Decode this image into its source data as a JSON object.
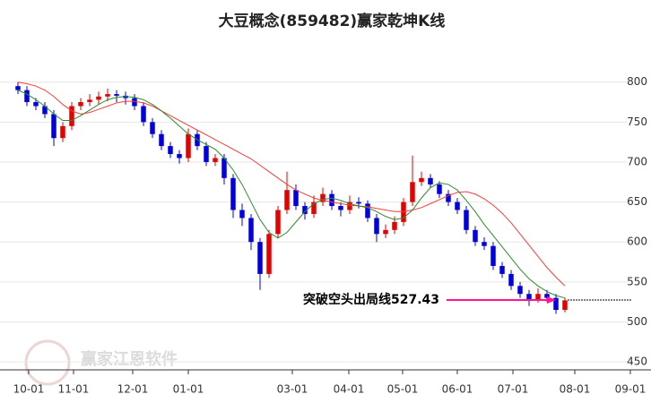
{
  "chart_data": {
    "type": "candlestick",
    "title": "大豆概念(859482)赢家乾坤K线",
    "x": [
      0,
      1,
      2,
      3,
      4,
      5,
      6,
      7,
      8,
      9,
      10,
      11,
      12,
      13,
      14,
      15,
      16,
      17,
      18,
      19,
      20,
      21,
      22,
      23,
      24,
      25,
      26,
      27,
      28,
      29,
      30,
      31,
      32,
      33,
      34,
      35,
      36,
      37,
      38,
      39,
      40,
      41,
      42,
      43,
      44,
      45,
      46,
      47,
      48,
      49,
      50,
      51,
      52,
      53,
      54,
      55,
      56,
      57,
      58,
      59,
      60,
      61
    ],
    "open": [
      795,
      790,
      775,
      770,
      760,
      730,
      745,
      770,
      775,
      778,
      782,
      785,
      783,
      780,
      770,
      750,
      735,
      720,
      710,
      705,
      735,
      720,
      700,
      705,
      680,
      640,
      630,
      600,
      560,
      610,
      640,
      665,
      645,
      635,
      650,
      660,
      645,
      640,
      650,
      648,
      630,
      610,
      615,
      625,
      650,
      675,
      680,
      672,
      660,
      650,
      640,
      615,
      600,
      595,
      570,
      560,
      545,
      535,
      528,
      535,
      530,
      515
    ],
    "high": [
      800,
      795,
      780,
      775,
      765,
      750,
      775,
      780,
      785,
      788,
      792,
      790,
      788,
      785,
      775,
      755,
      740,
      725,
      715,
      742,
      740,
      725,
      710,
      710,
      685,
      648,
      635,
      605,
      615,
      645,
      688,
      672,
      650,
      658,
      668,
      665,
      650,
      658,
      656,
      652,
      635,
      622,
      632,
      655,
      708,
      688,
      685,
      676,
      665,
      655,
      645,
      620,
      606,
      600,
      575,
      565,
      550,
      540,
      542,
      540,
      535,
      530
    ],
    "low": [
      785,
      770,
      765,
      755,
      720,
      725,
      740,
      765,
      770,
      772,
      776,
      775,
      772,
      765,
      745,
      730,
      715,
      705,
      698,
      700,
      715,
      695,
      695,
      672,
      630,
      620,
      590,
      540,
      555,
      605,
      635,
      640,
      628,
      630,
      645,
      640,
      632,
      635,
      642,
      625,
      600,
      605,
      610,
      620,
      645,
      670,
      668,
      655,
      645,
      635,
      610,
      595,
      590,
      565,
      555,
      540,
      530,
      520,
      524,
      525,
      510,
      512
    ],
    "close": [
      790,
      775,
      770,
      760,
      730,
      745,
      770,
      775,
      778,
      782,
      785,
      783,
      780,
      770,
      750,
      735,
      720,
      710,
      705,
      735,
      720,
      700,
      705,
      680,
      640,
      630,
      600,
      560,
      610,
      640,
      665,
      645,
      635,
      650,
      660,
      645,
      640,
      650,
      648,
      630,
      610,
      615,
      625,
      650,
      675,
      680,
      672,
      660,
      650,
      640,
      615,
      600,
      595,
      570,
      560,
      545,
      535,
      528,
      535,
      530,
      515,
      527
    ],
    "up_color": "#e60000",
    "down_color": "#0000e6",
    "series": [
      {
        "color": "#ff3b3b",
        "values": [
          800,
          798,
          795,
          790,
          782,
          772,
          764,
          760,
          762,
          766,
          770,
          774,
          776,
          776,
          774,
          770,
          764,
          758,
          752,
          746,
          740,
          734,
          728,
          722,
          716,
          710,
          704,
          696,
          688,
          680,
          672,
          665,
          660,
          655,
          652,
          650,
          648,
          646,
          645,
          644,
          642,
          640,
          638,
          638,
          640,
          643,
          648,
          653,
          658,
          662,
          663,
          660,
          654,
          646,
          636,
          624,
          610,
          596,
          582,
          568,
          556,
          545
        ]
      },
      {
        "color": "#2e8b2e",
        "values": [
          790,
          785,
          778,
          770,
          760,
          752,
          752,
          758,
          765,
          772,
          778,
          781,
          782,
          781,
          778,
          772,
          764,
          755,
          745,
          735,
          728,
          722,
          716,
          705,
          690,
          672,
          650,
          628,
          612,
          605,
          612,
          625,
          638,
          648,
          653,
          655,
          652,
          648,
          645,
          643,
          638,
          632,
          628,
          630,
          640,
          655,
          668,
          674,
          672,
          665,
          652,
          638,
          622,
          608,
          594,
          580,
          566,
          554,
          545,
          538,
          533,
          530
        ]
      }
    ],
    "xlim": [
      -0.2,
      68.5
    ],
    "xticks": [
      {
        "value": 1.2,
        "label": "10-01"
      },
      {
        "value": 6.2,
        "label": "11-01"
      },
      {
        "value": 12.8,
        "label": "12-01"
      },
      {
        "value": 19,
        "label": "01-01"
      },
      {
        "value": 30.6,
        "label": "03-01"
      },
      {
        "value": 36.9,
        "label": "04-01"
      },
      {
        "value": 42.9,
        "label": "05-01"
      },
      {
        "value": 49,
        "label": "06-01"
      },
      {
        "value": 55.2,
        "label": "07-01"
      },
      {
        "value": 62.1,
        "label": "08-01"
      },
      {
        "value": 68.3,
        "label": "09-01"
      }
    ],
    "ylim": [
      440,
      840
    ],
    "yticks": [
      450,
      500,
      550,
      600,
      650,
      700,
      750,
      800
    ],
    "grid": true,
    "annotation": {
      "text": "突破空头出局线527.43",
      "value": 527.43,
      "color": "#ff1493"
    }
  },
  "watermark": "赢家江恩软件"
}
